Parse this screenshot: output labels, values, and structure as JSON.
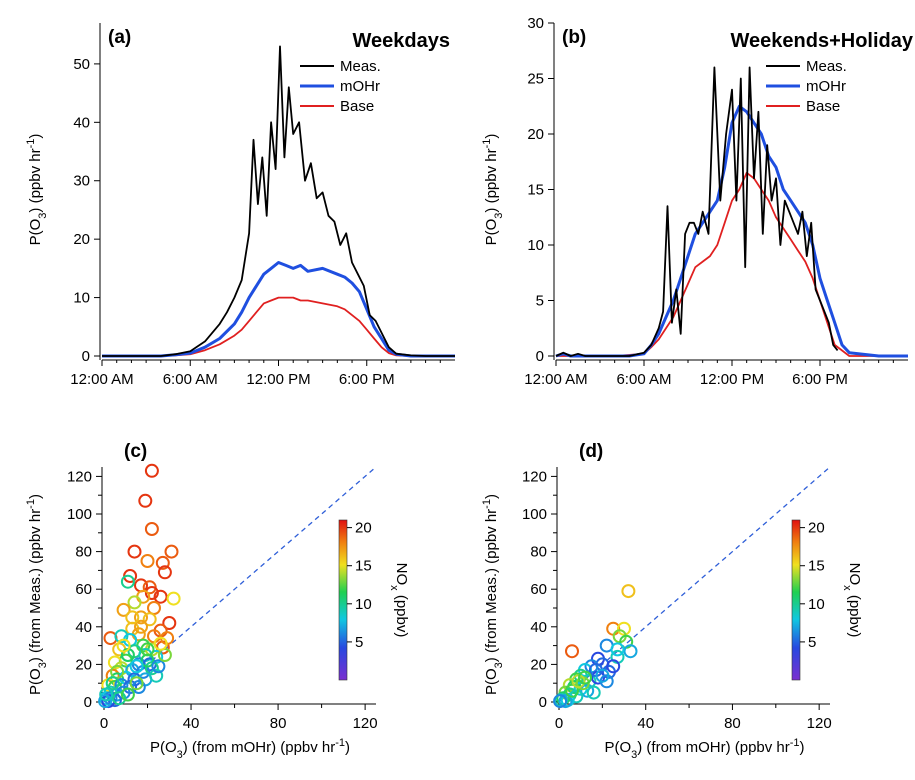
{
  "chart_data": [
    {
      "type": "line",
      "panel": "(a)",
      "title": "Weekdays",
      "xlabel": "",
      "ylabel": "P(O3) (ppbv hr-1)",
      "ylabel_parts": {
        "a": "P(O",
        "sub": "3",
        "b": ") (ppbv hr",
        "sup": "-1",
        "c": ")"
      },
      "x_tick_labels": [
        "12:00 AM",
        "6:00 AM",
        "12:00 PM",
        "6:00 PM"
      ],
      "x_tick_hours": [
        0,
        6,
        12,
        18
      ],
      "xlim_hours": [
        0,
        24
      ],
      "ylim": [
        0,
        57
      ],
      "y_ticks": [
        0,
        10,
        20,
        30,
        40,
        50
      ],
      "legend_placement": "top-right",
      "series": [
        {
          "name": "Meas.",
          "color": "#000000",
          "x": [
            0,
            4,
            5,
            6,
            7,
            8,
            8.5,
            9,
            9.5,
            10,
            10.3,
            10.6,
            10.9,
            11.2,
            11.5,
            11.8,
            12.1,
            12.4,
            12.7,
            13,
            13.4,
            13.8,
            14.2,
            14.6,
            15,
            15.4,
            15.8,
            16.2,
            16.6,
            17,
            17.4,
            17.8,
            18.2,
            18.6,
            19,
            19.5,
            20,
            21,
            22,
            23,
            24
          ],
          "y": [
            0,
            0,
            0.3,
            0.8,
            2.5,
            5.5,
            7.5,
            10,
            13,
            21,
            37,
            26,
            34,
            24,
            40,
            32,
            53,
            34,
            46,
            38,
            40,
            30,
            33,
            27,
            28,
            24,
            23,
            19,
            21,
            16,
            14,
            12,
            7,
            6,
            4,
            1.5,
            0.4,
            0.1,
            0,
            0,
            0
          ]
        },
        {
          "name": "mOHr",
          "color": "#1f4fe0",
          "x": [
            0,
            4,
            5,
            6,
            7,
            8,
            9,
            9.5,
            10,
            10.5,
            11,
            11.5,
            12,
            12.5,
            13,
            13.5,
            14,
            15,
            16,
            16.5,
            17,
            17.5,
            18,
            18.5,
            19,
            19.5,
            20,
            21,
            22,
            24
          ],
          "y": [
            0,
            0,
            0.2,
            0.5,
            1.5,
            3,
            5.5,
            7.5,
            10,
            12,
            14,
            15,
            16,
            15.5,
            15,
            15.5,
            14.5,
            15,
            14,
            13.5,
            12.5,
            11,
            8,
            5,
            3,
            1,
            0.3,
            0,
            0,
            0
          ]
        },
        {
          "name": "Base",
          "color": "#e02020",
          "x": [
            0,
            4,
            5,
            6,
            7,
            8,
            9,
            9.5,
            10,
            10.5,
            11,
            11.5,
            12,
            12.5,
            13,
            13.5,
            14,
            15,
            16,
            16.5,
            17,
            17.5,
            18,
            18.5,
            19,
            19.5,
            20,
            21,
            22,
            24
          ],
          "y": [
            0,
            0,
            0.1,
            0.3,
            1,
            2,
            3.5,
            4.5,
            6,
            7.5,
            9,
            9.5,
            10,
            10,
            10,
            9.5,
            9.5,
            9,
            8.5,
            8,
            7,
            6,
            4.5,
            3,
            1.5,
            0.5,
            0.1,
            0,
            0,
            0
          ]
        }
      ]
    },
    {
      "type": "line",
      "panel": "(b)",
      "title": "Weekends+Holiday",
      "xlabel": "",
      "ylabel": "P(O3) (ppbv hr-1)",
      "ylabel_parts": {
        "a": "P(O",
        "sub": "3",
        "b": ") (ppbv hr",
        "sup": "-1",
        "c": ")"
      },
      "x_tick_labels": [
        "12:00 AM",
        "6:00 AM",
        "12:00 PM",
        "6:00 PM"
      ],
      "x_tick_hours": [
        0,
        6,
        12,
        18
      ],
      "xlim_hours": [
        0,
        24
      ],
      "ylim": [
        0,
        30
      ],
      "y_ticks": [
        0,
        5,
        10,
        15,
        20,
        25,
        30
      ],
      "legend_placement": "top-right",
      "series": [
        {
          "name": "Meas.",
          "color": "#000000",
          "x": [
            0,
            0.5,
            1,
            1.5,
            2,
            3,
            4,
            5,
            6,
            6.5,
            7,
            7.3,
            7.6,
            7.9,
            8.2,
            8.5,
            8.8,
            9.1,
            9.4,
            9.7,
            10,
            10.4,
            10.8,
            11.2,
            11.6,
            12,
            12.3,
            12.6,
            12.9,
            13.2,
            13.5,
            13.8,
            14.1,
            14.4,
            14.7,
            15,
            15.3,
            15.6,
            15.9,
            16.2,
            16.5,
            16.8,
            17.1,
            17.4,
            17.7,
            18,
            18.3,
            18.6,
            18.9,
            19.2
          ],
          "y": [
            0,
            0.3,
            0,
            0.2,
            0,
            0,
            0,
            0,
            0.3,
            1,
            2.5,
            4,
            13.5,
            3,
            6,
            2,
            11,
            12,
            12,
            11,
            13,
            11,
            26,
            14,
            20,
            24,
            14,
            25,
            8,
            26,
            16,
            22,
            11,
            19,
            14,
            16,
            10,
            14,
            13,
            12,
            11,
            13,
            9,
            12,
            6,
            5,
            4,
            3,
            1,
            0.5
          ]
        },
        {
          "name": "mOHr",
          "color": "#1f4fe0",
          "x": [
            0,
            0.5,
            1,
            2,
            3,
            4,
            5,
            6,
            6.5,
            7,
            7.5,
            8,
            8.5,
            9,
            9.5,
            10,
            10.5,
            11,
            11.5,
            12,
            12.5,
            13,
            13.5,
            14,
            14.5,
            15,
            15.5,
            16,
            16.5,
            17,
            17.5,
            18,
            18.5,
            19,
            19.5,
            20,
            22,
            24
          ],
          "y": [
            0,
            0.2,
            0,
            0,
            0,
            0,
            0,
            0.2,
            1,
            2,
            3.5,
            5,
            7,
            9,
            11,
            12,
            13,
            14,
            17,
            21,
            22.5,
            22,
            21,
            20,
            18,
            17,
            15,
            14,
            13,
            12,
            10,
            7,
            5,
            3,
            1,
            0.3,
            0,
            0
          ]
        },
        {
          "name": "Base",
          "color": "#e02020",
          "x": [
            0,
            2,
            4,
            6,
            6.5,
            7,
            7.5,
            8,
            8.5,
            9,
            9.5,
            10,
            10.5,
            11,
            11.5,
            12,
            12.5,
            13,
            13.5,
            14,
            14.5,
            15,
            15.5,
            16,
            16.5,
            17,
            17.5,
            18,
            18.5,
            19,
            20,
            24
          ],
          "y": [
            0,
            0,
            0,
            0.2,
            0.8,
            1.5,
            2.5,
            3.5,
            5,
            6.5,
            8,
            8.5,
            9,
            10,
            12,
            14,
            15,
            16.5,
            16,
            15,
            14,
            12.5,
            11.5,
            10.5,
            9.5,
            8.5,
            7,
            5,
            3,
            1,
            0,
            0
          ]
        }
      ]
    },
    {
      "type": "scatter",
      "panel": "(c)",
      "title": "",
      "xlabel": "P(O3) (from mOHr) (ppbv hr-1)",
      "xlabel_parts": {
        "a": "P(O",
        "sub": "3",
        "b": ") (from mOHr) (ppbv hr",
        "sup": "-1",
        "c": ")"
      },
      "ylabel": "P(O3) (from Meas.) (ppbv hr-1)",
      "ylabel_parts": {
        "a": "P(O",
        "sub": "3",
        "b": ") (from Meas.) (ppbv hr",
        "sup": "-1",
        "c": ")"
      },
      "xlim": [
        0,
        125
      ],
      "ylim": [
        0,
        125
      ],
      "x_ticks": [
        0,
        40,
        80,
        120
      ],
      "y_ticks": [
        0,
        20,
        40,
        60,
        80,
        100,
        120
      ],
      "reference_line": "1:1 dashed",
      "colorbar": {
        "label": "NOx (ppbv)",
        "label_parts": {
          "a": "NO",
          "sub": "x",
          "b": " (ppbv)"
        },
        "ticks": [
          5,
          10,
          15,
          20
        ],
        "range": [
          0,
          21
        ]
      },
      "points": [
        [
          22,
          123,
          20
        ],
        [
          19,
          107,
          20
        ],
        [
          22,
          92,
          19
        ],
        [
          14,
          80,
          20
        ],
        [
          31,
          80,
          19
        ],
        [
          20,
          75,
          18
        ],
        [
          27,
          74,
          19
        ],
        [
          28,
          69,
          20
        ],
        [
          12,
          67,
          20
        ],
        [
          17,
          62,
          20
        ],
        [
          21,
          61,
          19
        ],
        [
          22,
          58,
          20
        ],
        [
          18,
          56,
          17
        ],
        [
          26,
          56,
          20
        ],
        [
          32,
          55,
          15
        ],
        [
          14,
          53,
          14
        ],
        [
          11,
          64,
          10
        ],
        [
          9,
          49,
          17
        ],
        [
          23,
          50,
          18
        ],
        [
          17,
          45,
          17
        ],
        [
          21,
          44,
          16
        ],
        [
          30,
          42,
          20
        ],
        [
          26,
          38,
          19
        ],
        [
          13,
          39,
          16
        ],
        [
          16,
          36,
          17
        ],
        [
          3,
          34,
          19
        ],
        [
          8,
          35,
          9
        ],
        [
          12,
          33,
          8
        ],
        [
          18,
          30,
          12
        ],
        [
          22,
          28,
          14
        ],
        [
          27,
          29,
          19
        ],
        [
          29,
          34,
          18
        ],
        [
          7,
          28,
          16
        ],
        [
          14,
          27,
          10
        ],
        [
          19,
          25,
          9
        ],
        [
          24,
          24,
          8
        ],
        [
          10,
          22,
          12
        ],
        [
          16,
          20,
          6
        ],
        [
          21,
          20,
          5
        ],
        [
          5,
          21,
          15
        ],
        [
          8,
          18,
          14
        ],
        [
          13,
          17,
          7
        ],
        [
          18,
          16,
          6
        ],
        [
          22,
          18,
          10
        ],
        [
          4,
          14,
          18
        ],
        [
          6,
          12,
          11
        ],
        [
          10,
          13,
          8
        ],
        [
          14,
          12,
          5
        ],
        [
          19,
          12,
          7
        ],
        [
          24,
          14,
          9
        ],
        [
          2,
          9,
          15
        ],
        [
          5,
          8,
          12
        ],
        [
          8,
          9,
          6
        ],
        [
          12,
          8,
          5
        ],
        [
          16,
          8,
          6
        ],
        [
          3,
          5,
          9
        ],
        [
          6,
          4,
          7
        ],
        [
          9,
          5,
          6
        ],
        [
          1,
          2,
          8
        ],
        [
          3,
          2,
          6
        ],
        [
          5,
          1,
          5
        ],
        [
          2,
          0.5,
          4
        ],
        [
          0.5,
          0.5,
          7
        ],
        [
          7,
          2,
          10
        ],
        [
          11,
          4,
          12
        ],
        [
          15,
          10,
          13
        ],
        [
          20,
          22,
          11
        ],
        [
          25,
          19,
          6
        ],
        [
          28,
          25,
          13
        ],
        [
          11,
          25,
          11
        ],
        [
          6,
          16,
          13
        ],
        [
          9,
          30,
          15
        ],
        [
          17,
          40,
          17
        ],
        [
          23,
          35,
          18
        ],
        [
          13,
          45,
          16
        ],
        [
          4,
          10,
          10
        ],
        [
          1,
          4,
          9
        ],
        [
          15,
          19,
          8
        ],
        [
          20,
          28,
          12
        ],
        [
          26,
          31,
          15
        ]
      ]
    },
    {
      "type": "scatter",
      "panel": "(d)",
      "title": "",
      "xlabel": "P(O3) (from mOHr) (ppbv hr-1)",
      "xlabel_parts": {
        "a": "P(O",
        "sub": "3",
        "b": ") (from mOHr) (ppbv hr",
        "sup": "-1",
        "c": ")"
      },
      "ylabel": "P(O3) (from Meas.) (ppbv hr-1)",
      "ylabel_parts": {
        "a": "P(O",
        "sub": "3",
        "b": ") (from Meas.) (ppbv hr",
        "sup": "-1",
        "c": ")"
      },
      "xlim": [
        0,
        125
      ],
      "ylim": [
        0,
        125
      ],
      "x_ticks": [
        0,
        40,
        80,
        120
      ],
      "y_ticks": [
        0,
        20,
        40,
        60,
        80,
        100,
        120
      ],
      "reference_line": "1:1 dashed",
      "colorbar": {
        "label": "NOx (ppbv)",
        "label_parts": {
          "a": "NO",
          "sub": "x",
          "b": " (ppbv)"
        },
        "ticks": [
          5,
          10,
          15,
          20
        ],
        "range": [
          0,
          21
        ]
      },
      "points": [
        [
          32,
          59,
          16
        ],
        [
          25,
          39,
          18
        ],
        [
          30,
          39,
          15
        ],
        [
          28,
          35,
          13
        ],
        [
          31,
          32,
          12
        ],
        [
          6,
          27,
          19
        ],
        [
          33,
          27,
          7
        ],
        [
          27,
          24,
          9
        ],
        [
          22,
          30,
          6
        ],
        [
          18,
          23,
          4
        ],
        [
          20,
          20,
          5
        ],
        [
          15,
          19,
          6
        ],
        [
          12,
          17,
          8
        ],
        [
          23,
          16,
          5
        ],
        [
          25,
          19,
          4
        ],
        [
          10,
          14,
          10
        ],
        [
          8,
          12,
          12
        ],
        [
          14,
          11,
          9
        ],
        [
          18,
          13,
          4
        ],
        [
          22,
          11,
          6
        ],
        [
          5,
          9,
          14
        ],
        [
          7,
          8,
          11
        ],
        [
          10,
          7,
          8
        ],
        [
          13,
          6,
          7
        ],
        [
          16,
          5,
          9
        ],
        [
          3,
          5,
          13
        ],
        [
          5,
          4,
          10
        ],
        [
          8,
          3,
          9
        ],
        [
          2,
          2,
          11
        ],
        [
          4,
          1,
          8
        ],
        [
          1,
          1,
          9
        ],
        [
          3,
          0.5,
          7
        ],
        [
          0.5,
          0.5,
          6
        ],
        [
          6,
          6,
          12
        ],
        [
          11,
          10,
          13
        ],
        [
          17,
          17,
          5
        ],
        [
          20,
          14,
          7
        ],
        [
          27,
          28,
          8
        ],
        [
          9,
          11,
          14
        ],
        [
          12,
          13,
          12
        ]
      ]
    }
  ]
}
